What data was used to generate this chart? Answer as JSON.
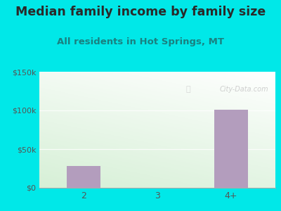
{
  "title": "Median family income by family size",
  "subtitle": "All residents in Hot Springs, MT",
  "categories": [
    "2",
    "3",
    "4+"
  ],
  "values": [
    28000,
    0,
    101000
  ],
  "bar_color": "#b39dbd",
  "ylim": [
    0,
    150000
  ],
  "yticks": [
    0,
    50000,
    100000,
    150000
  ],
  "ytick_labels": [
    "$0",
    "$50k",
    "$100k",
    "$150k"
  ],
  "bg_outer": "#00e8e8",
  "title_fontsize": 12.5,
  "subtitle_fontsize": 9.5,
  "title_color": "#2a2a2a",
  "subtitle_color": "#1a8080",
  "watermark": "City-Data.com",
  "tick_color": "#555555",
  "bar_width": 0.45,
  "gradient_top": "#f8fff8",
  "gradient_bottom": "#d8eed8"
}
